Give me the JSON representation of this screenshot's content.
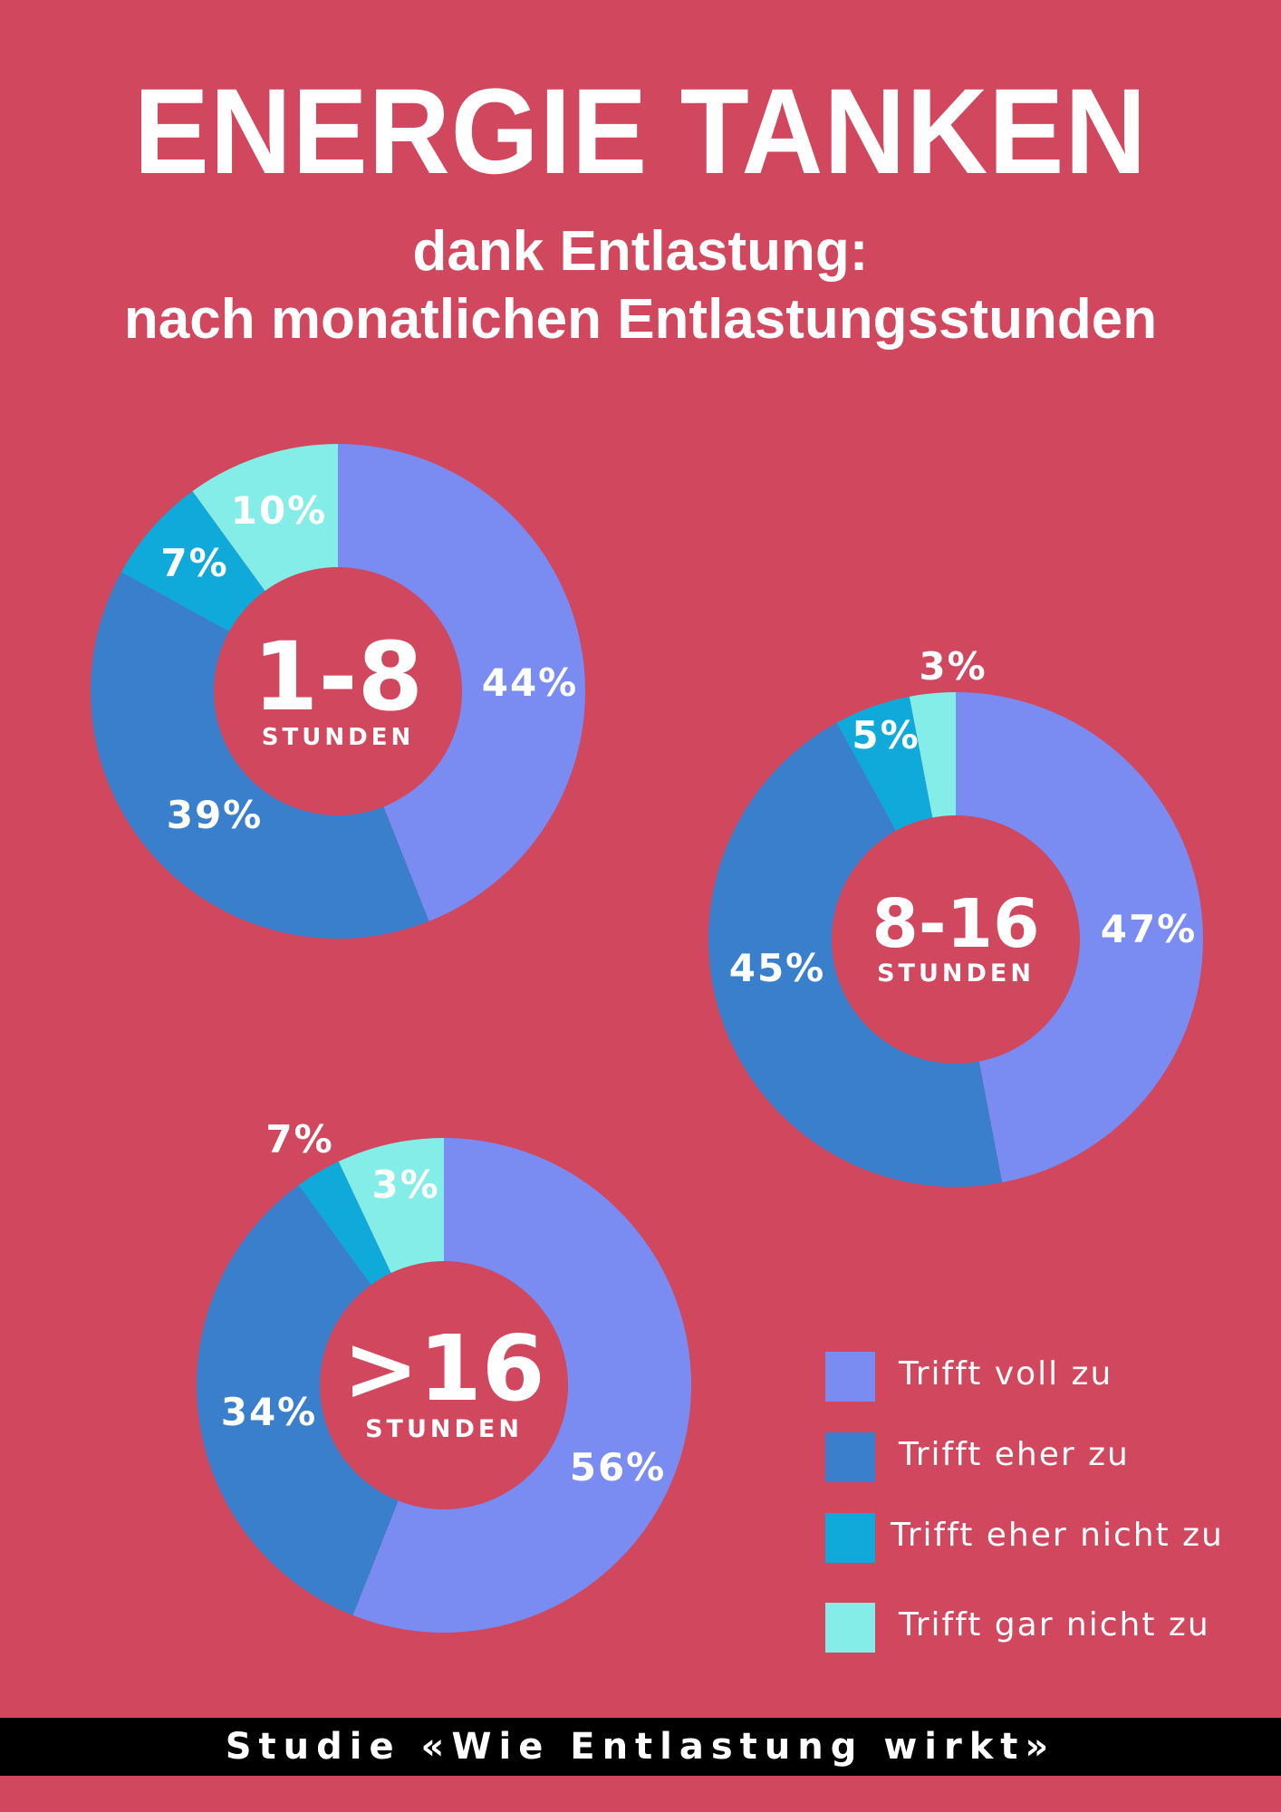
{
  "header": {
    "title": "ENERGIE TANKEN",
    "subtitle_line1": "dank Entlastung:",
    "subtitle_line2": "nach monatlichen Entlastungsstunden"
  },
  "colors": {
    "background": "#D0475E",
    "trifft_voll_zu": "#7A8BF2",
    "trifft_eher_zu": "#3A7FCC",
    "trifft_eher_nicht_zu": "#0FAADA",
    "trifft_gar_nicht_zu": "#85EDE8",
    "footer_band": "#000000"
  },
  "chart_data": [
    {
      "type": "pie",
      "variant": "donut",
      "center_label": "1-8",
      "center_sublabel": "STUNDEN",
      "categories": [
        "Trifft voll zu",
        "Trifft eher zu",
        "Trifft eher nicht zu",
        "Trifft gar nicht zu"
      ],
      "values": [
        44,
        39,
        7,
        10
      ],
      "labels": [
        "44%",
        "39%",
        "7%",
        "10%"
      ]
    },
    {
      "type": "pie",
      "variant": "donut",
      "center_label": "8-16",
      "center_sublabel": "STUNDEN",
      "categories": [
        "Trifft voll zu",
        "Trifft eher zu",
        "Trifft eher nicht zu",
        "Trifft gar nicht zu"
      ],
      "values": [
        47,
        45,
        5,
        3
      ],
      "labels": [
        "47%",
        "45%",
        "5%",
        "3%"
      ]
    },
    {
      "type": "pie",
      "variant": "donut",
      "center_label": ">16",
      "center_sublabel": "STUNDEN",
      "categories": [
        "Trifft voll zu",
        "Trifft eher zu",
        "Trifft eher nicht zu",
        "Trifft gar nicht zu"
      ],
      "values": [
        56,
        34,
        3,
        7
      ],
      "labels": [
        "56%",
        "34%",
        "3%",
        "7%"
      ]
    }
  ],
  "legend": {
    "placement": "bottom-right",
    "items": [
      {
        "label": "Trifft voll zu",
        "color": "#7A8BF2"
      },
      {
        "label": "Trifft eher zu",
        "color": "#3A7FCC"
      },
      {
        "label": "Trifft eher nicht zu",
        "color": "#0FAADA"
      },
      {
        "label": "Trifft gar nicht zu",
        "color": "#85EDE8"
      }
    ]
  },
  "footer": {
    "text": "Studie «Wie Entlastung wirkt»"
  }
}
